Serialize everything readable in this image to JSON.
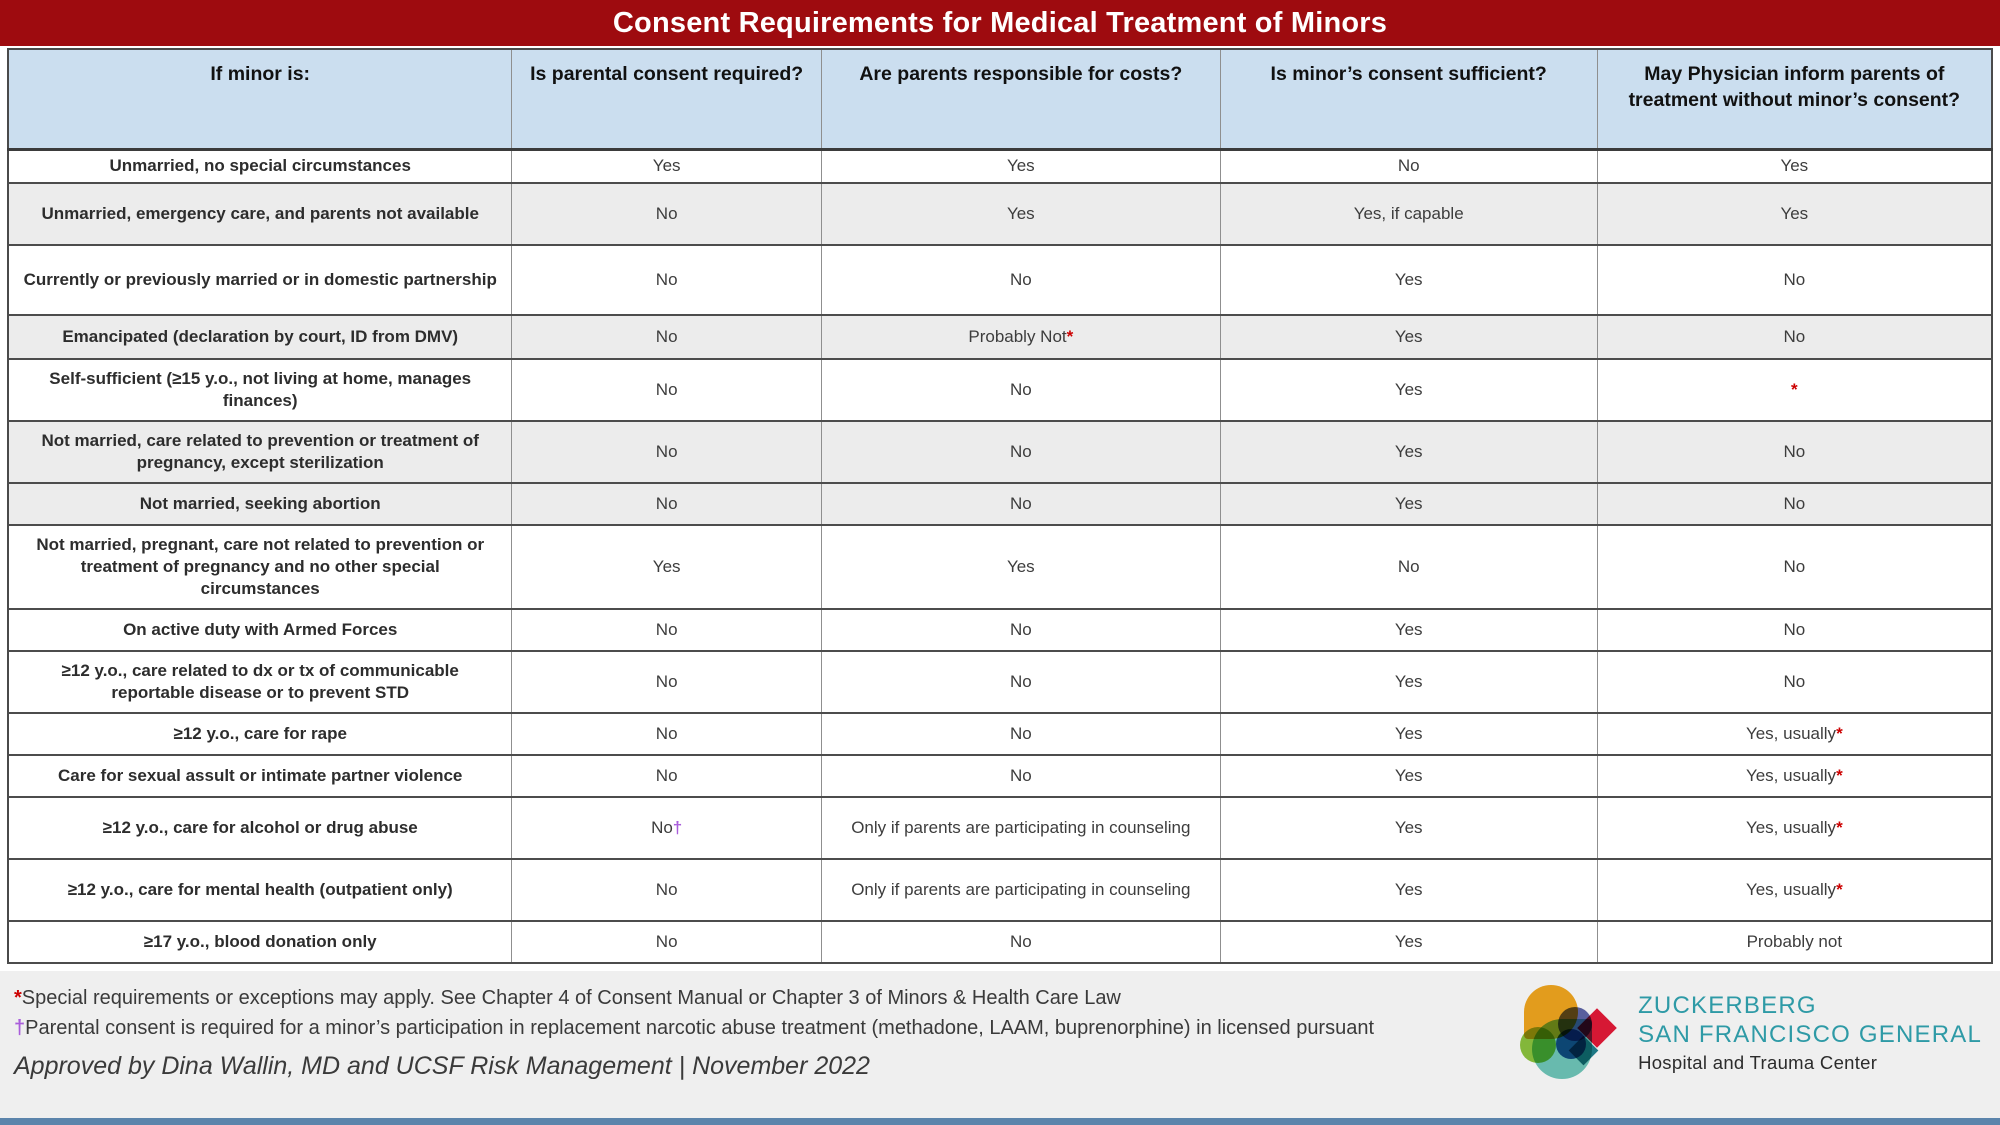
{
  "title": "Consent Requirements for Medical Treatment of Minors",
  "table": {
    "columns": [
      "If minor is:",
      "Is parental consent required?",
      "Are parents responsible for costs?",
      "Is minor’s consent sufficient?",
      "May Physician inform parents of treatment without minor’s consent?"
    ],
    "rows": [
      {
        "shaded": false,
        "cells": [
          {
            "text": "Unmarried, no special circumstances",
            "sup": ""
          },
          {
            "text": "Yes",
            "sup": ""
          },
          {
            "text": "Yes",
            "sup": ""
          },
          {
            "text": "No",
            "sup": ""
          },
          {
            "text": "Yes",
            "sup": ""
          }
        ]
      },
      {
        "shaded": true,
        "cells": [
          {
            "text": "Unmarried, emergency care, and parents not available",
            "sup": ""
          },
          {
            "text": "No",
            "sup": ""
          },
          {
            "text": "Yes",
            "sup": ""
          },
          {
            "text": "Yes, if capable",
            "sup": ""
          },
          {
            "text": "Yes",
            "sup": ""
          }
        ]
      },
      {
        "shaded": false,
        "cells": [
          {
            "text": "Currently or previously married or in domestic partnership",
            "sup": ""
          },
          {
            "text": "No",
            "sup": ""
          },
          {
            "text": "No",
            "sup": ""
          },
          {
            "text": "Yes",
            "sup": ""
          },
          {
            "text": "No",
            "sup": ""
          }
        ]
      },
      {
        "shaded": true,
        "cells": [
          {
            "text": "Emancipated (declaration by court, ID from DMV)",
            "sup": ""
          },
          {
            "text": "No",
            "sup": ""
          },
          {
            "text": "Probably Not",
            "sup": "*"
          },
          {
            "text": "Yes",
            "sup": ""
          },
          {
            "text": "No",
            "sup": ""
          }
        ]
      },
      {
        "shaded": false,
        "cells": [
          {
            "text": "Self-sufficient (≥15 y.o., not living at home, manages finances)",
            "sup": ""
          },
          {
            "text": "No",
            "sup": ""
          },
          {
            "text": "No",
            "sup": ""
          },
          {
            "text": "Yes",
            "sup": ""
          },
          {
            "text": "",
            "sup": "*"
          }
        ]
      },
      {
        "shaded": true,
        "cells": [
          {
            "text": "Not married, care related to prevention or treatment of pregnancy, except sterilization",
            "sup": ""
          },
          {
            "text": "No",
            "sup": ""
          },
          {
            "text": "No",
            "sup": ""
          },
          {
            "text": "Yes",
            "sup": ""
          },
          {
            "text": "No",
            "sup": ""
          }
        ]
      },
      {
        "shaded": true,
        "cells": [
          {
            "text": "Not married, seeking abortion",
            "sup": ""
          },
          {
            "text": "No",
            "sup": ""
          },
          {
            "text": "No",
            "sup": ""
          },
          {
            "text": "Yes",
            "sup": ""
          },
          {
            "text": "No",
            "sup": ""
          }
        ]
      },
      {
        "shaded": false,
        "cells": [
          {
            "text": "Not married, pregnant, care not related to prevention or treatment of pregnancy and no other special circumstances",
            "sup": ""
          },
          {
            "text": "Yes",
            "sup": ""
          },
          {
            "text": "Yes",
            "sup": ""
          },
          {
            "text": "No",
            "sup": ""
          },
          {
            "text": "No",
            "sup": ""
          }
        ]
      },
      {
        "shaded": false,
        "cells": [
          {
            "text": "On active duty with Armed Forces",
            "sup": ""
          },
          {
            "text": "No",
            "sup": ""
          },
          {
            "text": "No",
            "sup": ""
          },
          {
            "text": "Yes",
            "sup": ""
          },
          {
            "text": "No",
            "sup": ""
          }
        ]
      },
      {
        "shaded": false,
        "cells": [
          {
            "text": "≥12 y.o., care related to dx or tx of communicable reportable disease or to prevent STD",
            "sup": ""
          },
          {
            "text": "No",
            "sup": ""
          },
          {
            "text": "No",
            "sup": ""
          },
          {
            "text": "Yes",
            "sup": ""
          },
          {
            "text": "No",
            "sup": ""
          }
        ]
      },
      {
        "shaded": false,
        "cells": [
          {
            "text": "≥12 y.o., care for rape",
            "sup": ""
          },
          {
            "text": "No",
            "sup": ""
          },
          {
            "text": "No",
            "sup": ""
          },
          {
            "text": "Yes",
            "sup": ""
          },
          {
            "text": "Yes, usually",
            "sup": "*"
          }
        ]
      },
      {
        "shaded": false,
        "cells": [
          {
            "text": "Care for sexual assult or intimate partner violence",
            "sup": ""
          },
          {
            "text": "No",
            "sup": ""
          },
          {
            "text": "No",
            "sup": ""
          },
          {
            "text": "Yes",
            "sup": ""
          },
          {
            "text": "Yes, usually",
            "sup": "*"
          }
        ]
      },
      {
        "shaded": false,
        "cells": [
          {
            "text": "≥12 y.o., care for alcohol or drug abuse",
            "sup": ""
          },
          {
            "text": "No",
            "sup": "†"
          },
          {
            "text": "Only if parents are participating in counseling",
            "sup": ""
          },
          {
            "text": "Yes",
            "sup": ""
          },
          {
            "text": "Yes, usually",
            "sup": "*"
          }
        ]
      },
      {
        "shaded": false,
        "cells": [
          {
            "text": "≥12 y.o., care for mental health (outpatient only)",
            "sup": ""
          },
          {
            "text": "No",
            "sup": ""
          },
          {
            "text": "Only if parents are participating in counseling",
            "sup": ""
          },
          {
            "text": "Yes",
            "sup": ""
          },
          {
            "text": "Yes, usually",
            "sup": "*"
          }
        ]
      },
      {
        "shaded": false,
        "cells": [
          {
            "text": "≥17 y.o., blood donation only",
            "sup": ""
          },
          {
            "text": "No",
            "sup": ""
          },
          {
            "text": "No",
            "sup": ""
          },
          {
            "text": "Yes",
            "sup": ""
          },
          {
            "text": "Probably not",
            "sup": ""
          }
        ]
      }
    ]
  },
  "footnotes": [
    {
      "marker": "*",
      "text": "Special requirements or exceptions may apply. See Chapter 4 of Consent Manual or Chapter 3 of Minors & Health Care Law"
    },
    {
      "marker": "†",
      "text": "Parental consent is required for a minor’s participation in replacement narcotic abuse treatment (methadone, LAAM, buprenorphine) in licensed pursuant"
    }
  ],
  "approval": "Approved by Dina Wallin, MD and UCSF Risk Management | November 2022",
  "logo": {
    "line1": "ZUCKERBERG",
    "line2": "SAN FRANCISCO GENERAL",
    "line3": "Hospital and Trauma Center"
  },
  "colors": {
    "banner": "#9e0b0f",
    "header_bg": "#cbdeef",
    "shaded_row": "#ececec",
    "footer_bg": "#efefef",
    "asterisk": "#cc0000",
    "dagger": "#a95ddb",
    "logo_teal": "#2e9aa6",
    "bottom_strip": "#5b84ab"
  }
}
